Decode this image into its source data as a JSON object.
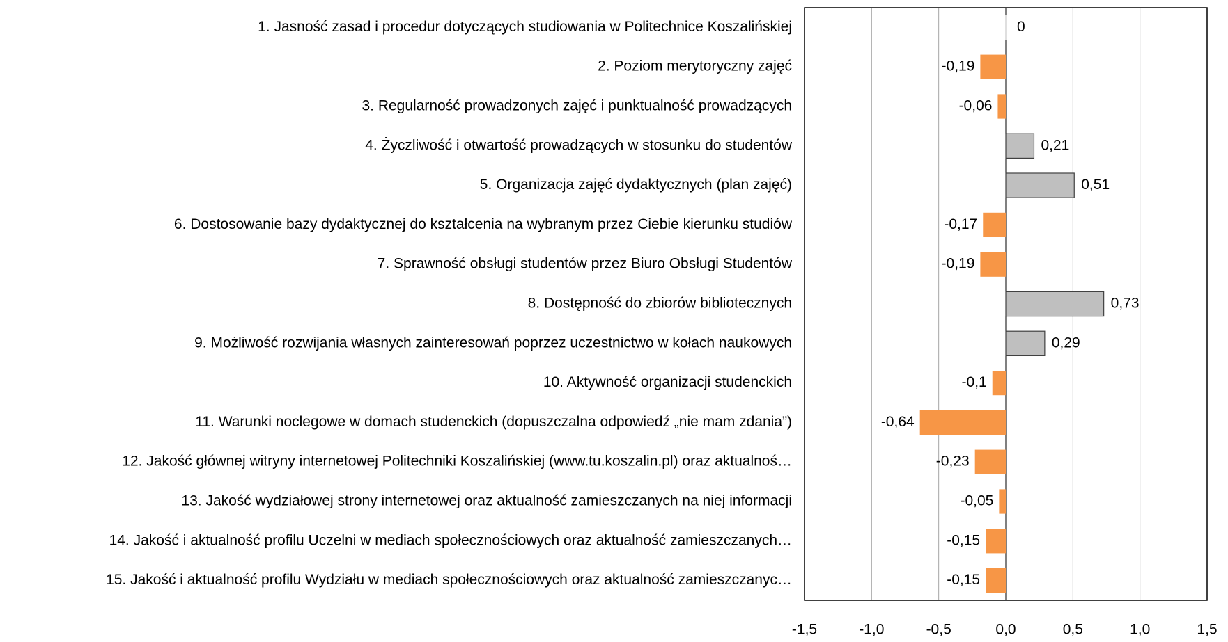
{
  "chart_data": {
    "type": "barh",
    "categories": [
      "1. Jasność zasad i procedur dotyczących studiowania w Politechnice Koszalińskiej",
      "2. Poziom merytoryczny zajęć",
      "3. Regularność prowadzonych zajęć i punktualność prowadzących",
      "4. Życzliwość i otwartość prowadzących w stosunku do studentów",
      "5. Organizacja zajęć dydaktycznych (plan zajęć)",
      "6. Dostosowanie bazy dydaktycznej do kształcenia na wybranym przez Ciebie kierunku studiów",
      "7. Sprawność obsługi studentów przez Biuro Obsługi Studentów",
      "8. Dostępność do zbiorów bibliotecznych",
      "9. Możliwość rozwijania własnych zainteresowań poprzez uczestnictwo w kołach naukowych",
      "10. Aktywność organizacji studenckich",
      "11. Warunki noclegowe w domach studenckich (dopuszczalna odpowiedź „nie mam zdania”)",
      "12. Jakość głównej witryny internetowej Politechniki Koszalińskiej (www.tu.koszalin.pl) oraz aktualnoś…",
      "13. Jakość wydziałowej strony internetowej oraz aktualność zamieszczanych na niej informacji",
      "14. Jakość i aktualność profilu Uczelni w mediach społecznościowych oraz aktualność zamieszczanych…",
      "15. Jakość i aktualność profilu Wydziału w mediach społecznościowych oraz aktualność zamieszczanyc…"
    ],
    "values": [
      0,
      -0.19,
      -0.06,
      0.21,
      0.51,
      -0.17,
      -0.19,
      0.73,
      0.29,
      -0.1,
      -0.64,
      -0.23,
      -0.05,
      -0.15,
      -0.15
    ],
    "value_labels": [
      "0",
      "-0,19",
      "-0,06",
      "0,21",
      "0,51",
      "-0,17",
      "-0,19",
      "0,73",
      "0,29",
      "-0,1",
      "-0,64",
      "-0,23",
      "-0,05",
      "-0,15",
      "-0,15"
    ],
    "negative_color": "#f79646",
    "positive_color": "#bfbfbf",
    "xlim": [
      -1.5,
      1.5
    ],
    "xticks": [
      {
        "value": -1.5,
        "label": "-1,5"
      },
      {
        "value": -1.0,
        "label": "-1,0"
      },
      {
        "value": -0.5,
        "label": "-0,5"
      },
      {
        "value": 0.0,
        "label": "0,0"
      },
      {
        "value": 0.5,
        "label": "0,5"
      },
      {
        "value": 1.0,
        "label": "1,0"
      },
      {
        "value": 1.5,
        "label": "1,5"
      }
    ],
    "grid": true
  }
}
